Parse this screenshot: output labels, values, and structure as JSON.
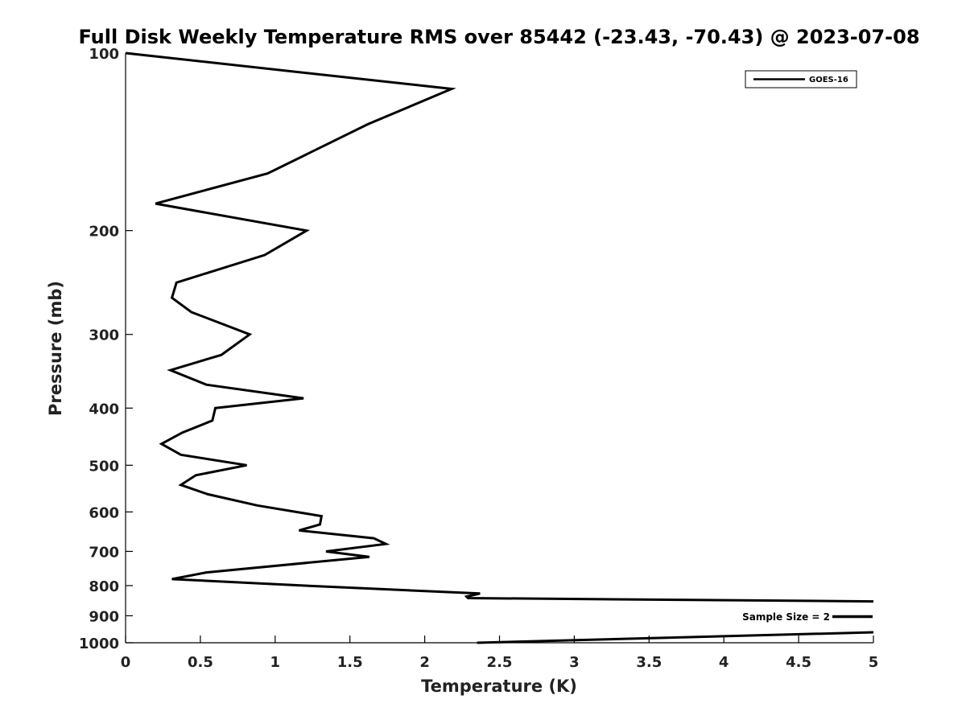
{
  "chart_data": {
    "type": "line",
    "title": "Full Disk Weekly Temperature RMS over 85442 (-23.43, -70.43) @ 2023-07-08",
    "xlabel": "Temperature (K)",
    "ylabel": "Pressure (mb)",
    "xlim": [
      0,
      5
    ],
    "ylim": [
      1000,
      100
    ],
    "yscale": "log",
    "y_reversed": true,
    "grid": false,
    "legend": {
      "placement": "top-right",
      "entries": [
        "GOES-16"
      ]
    },
    "xticks": [
      0,
      0.5,
      1,
      1.5,
      2,
      2.5,
      3,
      3.5,
      4,
      4.5,
      5
    ],
    "xtick_labels": [
      "0",
      "0.5",
      "1",
      "1.5",
      "2",
      "2.5",
      "3",
      "3.5",
      "4",
      "4.5",
      "5"
    ],
    "yticks": [
      100,
      200,
      300,
      400,
      500,
      600,
      700,
      800,
      900,
      1000
    ],
    "ytick_labels": [
      "100",
      "200",
      "300",
      "400",
      "500",
      "600",
      "700",
      "800",
      "900",
      "1000"
    ],
    "annotation": {
      "text": "Sample Size = 2"
    },
    "series": [
      {
        "name": "GOES-16",
        "color": "#000000",
        "x": [
          0.0,
          2.18,
          1.62,
          0.95,
          0.2,
          1.21,
          0.93,
          0.34,
          0.31,
          0.44,
          0.83,
          0.64,
          0.3,
          0.54,
          1.19,
          0.6,
          0.58,
          0.38,
          0.24,
          0.37,
          0.81,
          0.47,
          0.37,
          0.55,
          0.88,
          1.31,
          1.3,
          1.16,
          1.66,
          1.74,
          1.34,
          1.63,
          0.54,
          0.31,
          1.2,
          2.37,
          2.28,
          2.29,
          5.0
        ],
        "y": [
          100,
          115,
          132,
          160,
          180,
          200,
          220,
          245,
          260,
          275,
          300,
          325,
          345,
          365,
          385,
          400,
          420,
          440,
          460,
          480,
          500,
          520,
          540,
          560,
          585,
          610,
          630,
          645,
          665,
          680,
          700,
          715,
          760,
          780,
          800,
          825,
          835,
          840,
          851
        ]
      },
      {
        "name": "",
        "color": "#000000",
        "x": [
          5.0,
          2.35
        ],
        "y": [
          960,
          1000
        ]
      }
    ]
  }
}
